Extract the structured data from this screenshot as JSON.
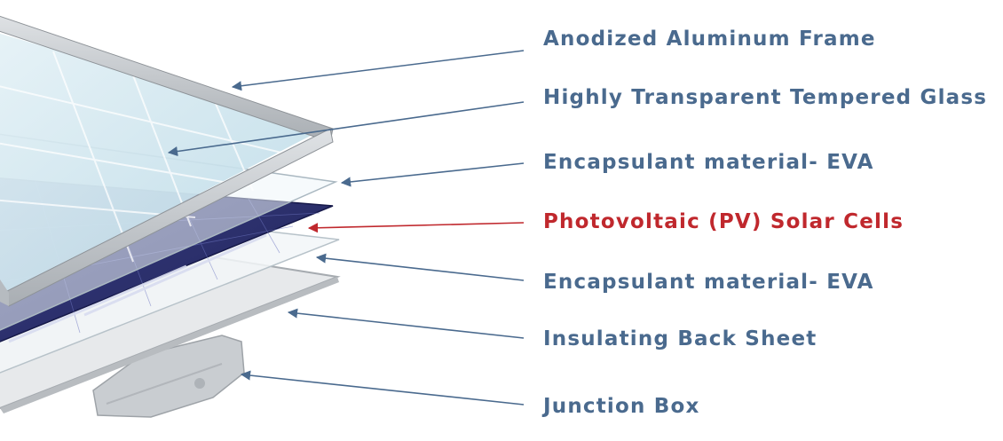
{
  "colors": {
    "label": "#4a6a8e",
    "highlight": "#c0282d",
    "arrow": "#4a6a8e",
    "arrow_highlight": "#c0282d",
    "cells": "#2a2f6b",
    "glass": "#cfe6ef",
    "frame": "#c4c8cc"
  },
  "labels": [
    {
      "text": "Anodized Aluminum Frame",
      "highlight": false
    },
    {
      "text": "Highly Transparent Tempered Glass",
      "highlight": false
    },
    {
      "text": "Encapsulant material- EVA",
      "highlight": false
    },
    {
      "text": "Photovoltaic (PV) Solar Cells",
      "highlight": true
    },
    {
      "text": "Encapsulant material- EVA",
      "highlight": false
    },
    {
      "text": "Insulating Back Sheet",
      "highlight": false
    },
    {
      "text": "Junction Box",
      "highlight": false
    }
  ]
}
